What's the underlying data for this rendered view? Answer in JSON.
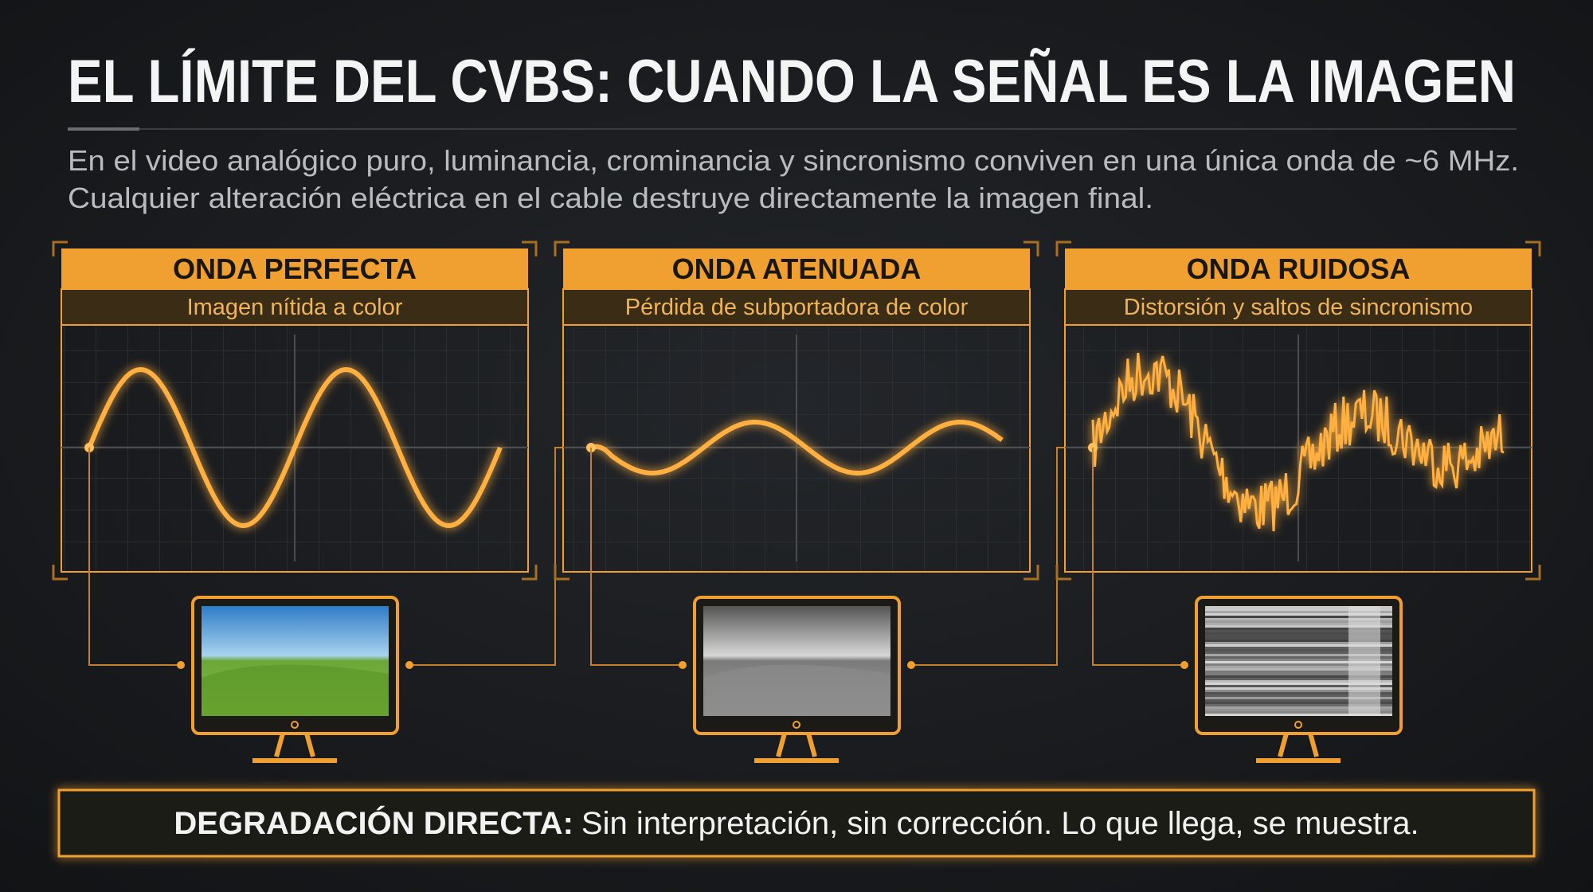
{
  "header": {
    "title": "EL LÍMITE DEL CVBS: CUANDO LA SEÑAL ES LA IMAGEN",
    "description": [
      "En el video analógico puro, luminancia, crominancia y sincronismo conviven en una única onda de ~6 MHz.",
      "Cualquier alteración eléctrica en el cable destruye directamente la imagen final."
    ]
  },
  "panels": [
    {
      "title": "ONDA PERFECTA",
      "subtitle": "Imagen nítida a color"
    },
    {
      "title": "ONDA ATENUADA",
      "subtitle": "Pérdida de subportadora de color"
    },
    {
      "title": "ONDA RUIDOSA",
      "subtitle": "Distorsión y saltos de sincronismo"
    }
  ],
  "footer": {
    "label": "DEGRADACIÓN DIRECTA:",
    "text": "Sin interpretación, sin corrección. Lo que llega, se muestra."
  }
}
